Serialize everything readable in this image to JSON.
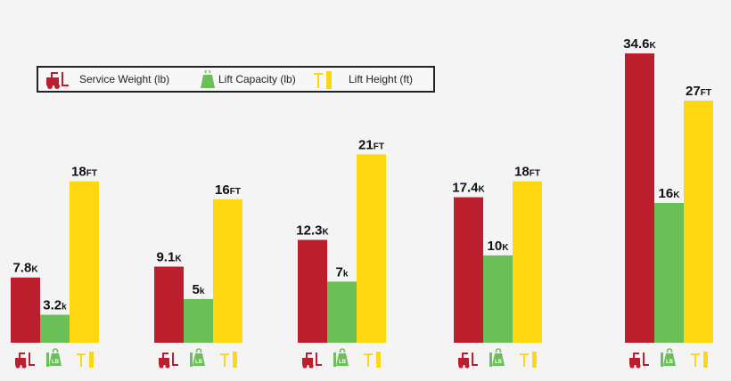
{
  "chart_data": {
    "type": "bar",
    "legend_position": "top-left",
    "grid": false,
    "categories": [
      "",
      "",
      "",
      "",
      ""
    ],
    "series": [
      {
        "name": "Service Weight (lb)",
        "color": "#bc1e2d",
        "icon": "forklift-icon",
        "values": [
          7.8,
          9.1,
          12.3,
          17.4,
          34.6
        ],
        "labels": [
          {
            "num": "7.8",
            "unit": "K"
          },
          {
            "num": "9.1",
            "unit": "K"
          },
          {
            "num": "12.3",
            "unit": "K"
          },
          {
            "num": "17.4",
            "unit": "K"
          },
          {
            "num": "34.6",
            "unit": "K"
          }
        ]
      },
      {
        "name": "Lift Capacity (lb)",
        "color": "#6bbf59",
        "icon": "weight-lb-icon",
        "values": [
          3.2,
          5,
          7,
          10,
          16
        ],
        "labels": [
          {
            "num": "3.2",
            "unit": "k"
          },
          {
            "num": "5",
            "unit": "k"
          },
          {
            "num": "7",
            "unit": "k"
          },
          {
            "num": "10",
            "unit": "K"
          },
          {
            "num": "16",
            "unit": "K"
          }
        ]
      },
      {
        "name": "Lift Height (ft)",
        "color": "#fdd711",
        "icon": "lift-mast-icon",
        "values": [
          18,
          16,
          21,
          18,
          27
        ],
        "labels": [
          {
            "num": "18",
            "unit": "FT"
          },
          {
            "num": "16",
            "unit": "FT"
          },
          {
            "num": "21",
            "unit": "FT"
          },
          {
            "num": "18",
            "unit": "FT"
          },
          {
            "num": "27",
            "unit": "FT"
          }
        ]
      }
    ]
  }
}
